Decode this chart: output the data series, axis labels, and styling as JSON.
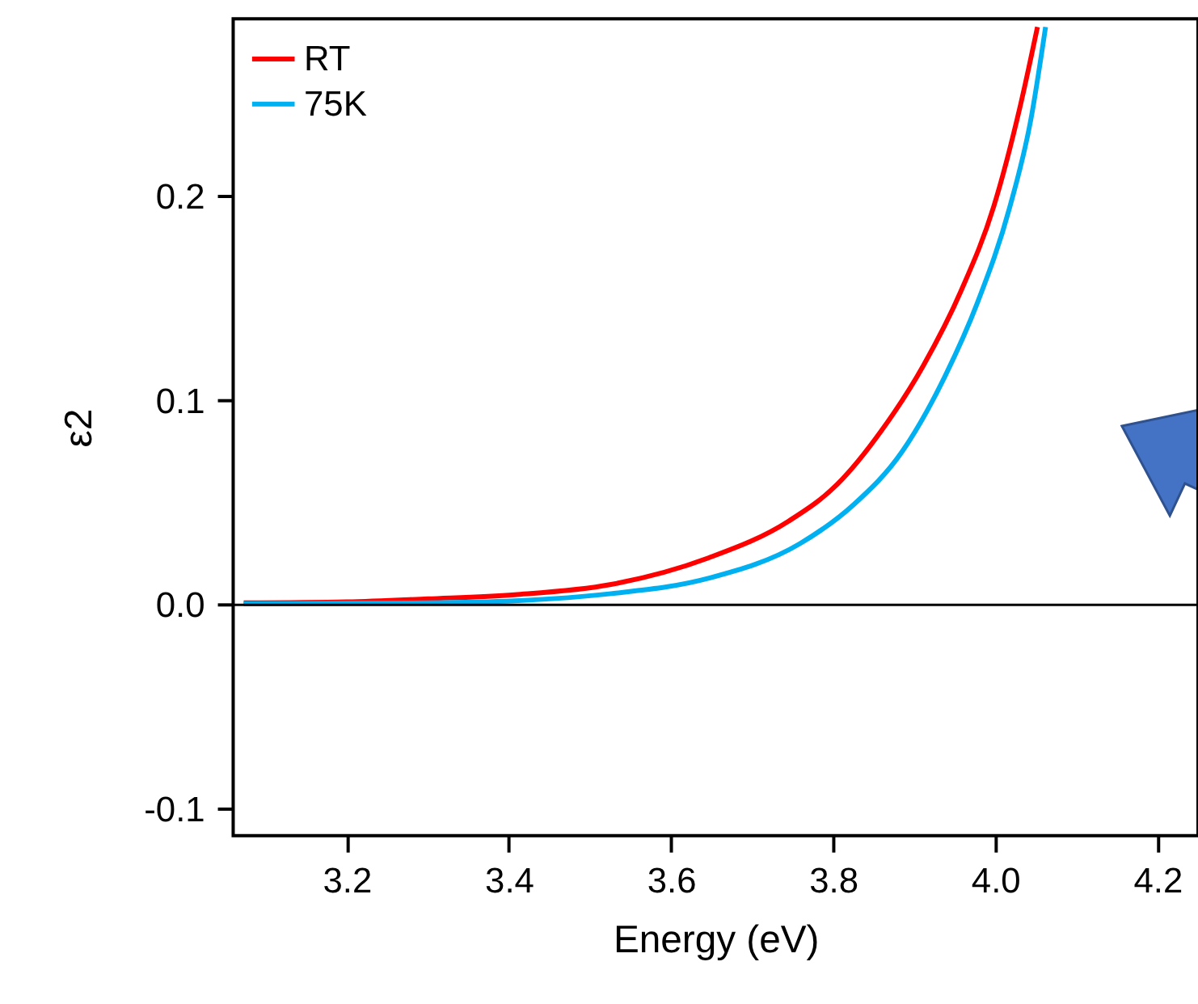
{
  "chart_data": {
    "type": "line",
    "xlabel": "Energy (eV)",
    "ylabel": "ε2",
    "xlim": [
      3.06,
      4.25
    ],
    "xticks": [
      3.2,
      3.4,
      3.6,
      3.8,
      {
        "value": 4,
        "label": "4.0"
      },
      4.2
    ],
    "ylim": [
      -0.113,
      0.287
    ],
    "yticks": [
      {
        "value": -0.1,
        "label": "-0.1"
      },
      {
        "value": 0,
        "label": "0.0"
      },
      {
        "value": 0.1,
        "label": "0.1"
      },
      {
        "value": 0.2,
        "label": "0.2"
      }
    ],
    "series": [
      {
        "name": "RT",
        "color": "#ff0000",
        "x": [
          3.073,
          3.2,
          3.3,
          3.407,
          3.526,
          3.646,
          3.745,
          3.805,
          3.859,
          3.911,
          3.958,
          3.998,
          4.03,
          4.052
        ],
        "values": [
          0.001,
          0.0015,
          0.003,
          0.005,
          0.01,
          0.023,
          0.041,
          0.059,
          0.085,
          0.117,
          0.154,
          0.195,
          0.243,
          0.283
        ]
      },
      {
        "name": "75K",
        "color": "#00b0f0",
        "x": [
          3.073,
          3.2,
          3.3,
          3.407,
          3.526,
          3.646,
          3.759,
          3.825,
          3.885,
          3.938,
          3.978,
          4.018,
          4.044,
          4.062
        ],
        "values": [
          0.0005,
          0.0008,
          0.001,
          0.002,
          0.0055,
          0.013,
          0.03,
          0.049,
          0.075,
          0.112,
          0.148,
          0.195,
          0.238,
          0.283
        ]
      }
    ],
    "ref_lines": [
      {
        "axis": "y",
        "value": 0,
        "color": "#000000"
      }
    ],
    "legend": "top left",
    "grid": false,
    "marker": "none",
    "line_style": "solid"
  }
}
